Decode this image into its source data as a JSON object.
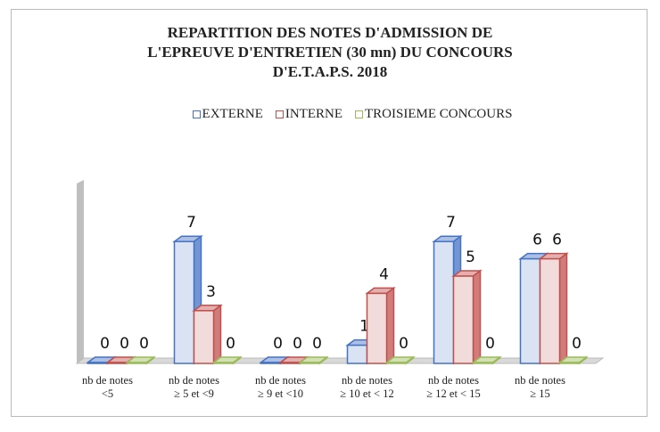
{
  "chart_data": {
    "type": "bar3d",
    "title": "REPARTITION DES NOTES D'ADMISSION DE\nL'EPREUVE D'ENTRETIEN (30 mn)  DU CONCOURS\nD'E.T.A.P.S. 2018",
    "categories": [
      "nb de notes\n<5",
      "nb de notes\n≥ 5 et <9",
      "nb de notes\n≥ 9 et <10",
      "nb de notes\n≥ 10 et < 12",
      "nb de notes\n≥ 12 et < 15",
      "nb de notes\n≥ 15"
    ],
    "series": [
      {
        "name": "EXTERNE",
        "color": "#4472c4",
        "values": [
          0,
          7,
          0,
          1,
          7,
          6
        ]
      },
      {
        "name": "INTERNE",
        "color": "#c0504d",
        "values": [
          0,
          3,
          0,
          4,
          5,
          6
        ]
      },
      {
        "name": "TROISIEME CONCOURS",
        "color": "#9bbb59",
        "values": [
          0,
          0,
          0,
          0,
          0,
          0
        ]
      }
    ],
    "ylim": [
      0,
      10
    ],
    "legend": "top"
  }
}
